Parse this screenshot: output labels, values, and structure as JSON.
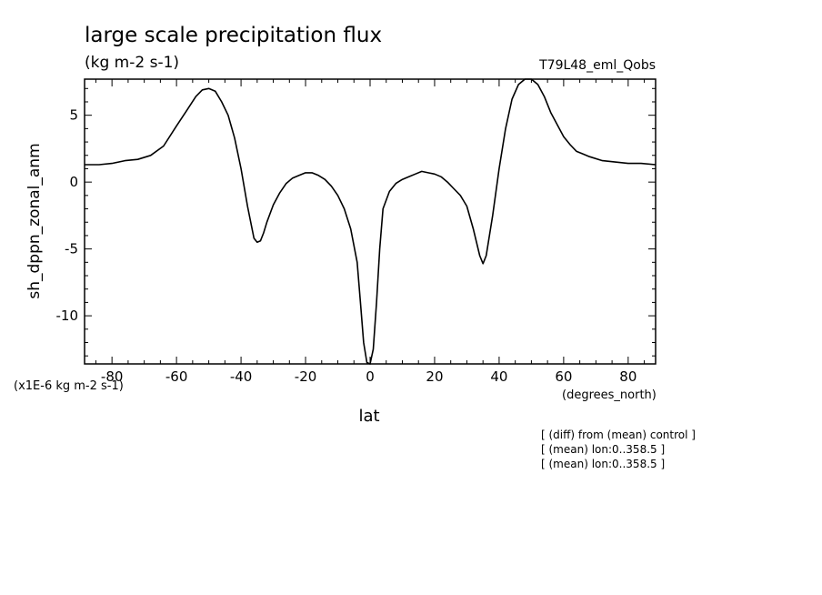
{
  "chart_data": {
    "type": "line",
    "title": "large scale precipitation flux",
    "subtitle": "(kg m-2 s-1)",
    "run_label": "T79L48_eml_Qobs",
    "xlabel": "lat",
    "xunits": "(degrees_north)",
    "ylabel": "sh_dppn_zonal_anm",
    "yunits": "(x1E-6 kg m-2 s-1)",
    "xlim": [
      -88.5,
      88.5
    ],
    "ylim": [
      -13.6,
      7.7
    ],
    "x_ticks": [
      -80,
      -60,
      -40,
      -20,
      0,
      20,
      40,
      60,
      80
    ],
    "x_tick_labels": [
      "-80",
      "-60",
      "-40",
      "-20",
      "0",
      "20",
      "40",
      "60",
      "80"
    ],
    "y_ticks": [
      5,
      0,
      -5,
      -10
    ],
    "y_tick_labels": [
      "5",
      "0",
      "-5",
      "-10"
    ],
    "grid": false,
    "notes": [
      "[ (diff) from (mean) control ]",
      "[ (mean) lon:0..358.5 ]",
      "[ (mean) lon:0..358.5 ]"
    ],
    "series": [
      {
        "x": [
          -88.5,
          -84,
          -80,
          -76,
          -72,
          -68,
          -64,
          -60,
          -57,
          -54,
          -52,
          -50,
          -48,
          -46,
          -44,
          -42,
          -40,
          -38,
          -36,
          -35,
          -34,
          -33,
          -32,
          -30,
          -28,
          -26,
          -24,
          -22,
          -20,
          -18,
          -16,
          -14,
          -12,
          -10,
          -8,
          -6,
          -4,
          -3,
          -2,
          -1,
          0,
          1,
          2,
          3,
          4,
          6,
          8,
          10,
          12,
          14,
          16,
          18,
          20,
          22,
          24,
          26,
          28,
          30,
          32,
          34,
          35,
          36,
          38,
          40,
          42,
          44,
          46,
          48,
          50,
          52,
          54,
          56,
          58,
          60,
          62,
          64,
          66,
          68,
          72,
          76,
          80,
          84,
          88.5
        ],
        "y": [
          1.3,
          1.3,
          1.4,
          1.6,
          1.7,
          2.0,
          2.7,
          4.2,
          5.3,
          6.4,
          6.9,
          7.0,
          6.8,
          6.0,
          5.0,
          3.3,
          1.0,
          -1.8,
          -4.2,
          -4.5,
          -4.4,
          -3.8,
          -3.0,
          -1.7,
          -0.8,
          -0.1,
          0.3,
          0.5,
          0.7,
          0.7,
          0.5,
          0.2,
          -0.3,
          -1.0,
          -2.0,
          -3.5,
          -6.0,
          -9.0,
          -12.0,
          -13.5,
          -13.6,
          -12.5,
          -9.0,
          -5.0,
          -2.0,
          -0.7,
          -0.1,
          0.2,
          0.4,
          0.6,
          0.8,
          0.7,
          0.6,
          0.4,
          0.0,
          -0.5,
          -1.0,
          -1.8,
          -3.5,
          -5.5,
          -6.1,
          -5.5,
          -2.5,
          1.0,
          4.0,
          6.2,
          7.3,
          7.7,
          7.7,
          7.3,
          6.4,
          5.2,
          4.3,
          3.4,
          2.8,
          2.3,
          2.1,
          1.9,
          1.6,
          1.5,
          1.4,
          1.4,
          1.3
        ]
      }
    ]
  }
}
